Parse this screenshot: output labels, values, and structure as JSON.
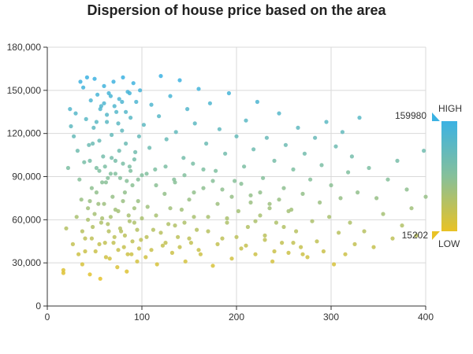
{
  "chart_data": {
    "type": "scatter",
    "title": "Dispersion of house price based on the area",
    "xlabel": "",
    "ylabel": "",
    "xlim": [
      0,
      400
    ],
    "ylim": [
      0,
      180000
    ],
    "x_ticks": [
      "0",
      "100",
      "200",
      "300",
      "400"
    ],
    "y_ticks": [
      "0",
      "30,000",
      "60,000",
      "90,000",
      "120,000",
      "150,000",
      "180,000"
    ],
    "grid": true,
    "visual_map": {
      "min": 15202,
      "max": 159980,
      "min_label": "15202",
      "max_label": "159980",
      "high_text": "HIGH",
      "low_text": "LOW",
      "color_high": "#3bb2e3",
      "color_mid": "#86c09a",
      "color_low": "#e9c225"
    },
    "series": [
      {
        "points": [
          [
            17,
            25000
          ],
          [
            17,
            23000
          ],
          [
            20,
            54000
          ],
          [
            22,
            96000
          ],
          [
            24,
            137000
          ],
          [
            25,
            125000
          ],
          [
            27,
            43000
          ],
          [
            28,
            118000
          ],
          [
            30,
            134000
          ],
          [
            31,
            62000
          ],
          [
            32,
            108000
          ],
          [
            33,
            36000
          ],
          [
            34,
            88000
          ],
          [
            35,
            156000
          ],
          [
            36,
            74000
          ],
          [
            37,
            29000
          ],
          [
            38,
            152000
          ],
          [
            39,
            100000
          ],
          [
            40,
            47000
          ],
          [
            41,
            130000
          ],
          [
            42,
            159000
          ],
          [
            43,
            68000
          ],
          [
            44,
            112000
          ],
          [
            45,
            22000
          ],
          [
            46,
            143000
          ],
          [
            47,
            82000
          ],
          [
            48,
            55000
          ],
          [
            49,
            124000
          ],
          [
            50,
            158000
          ],
          [
            51,
            38000
          ],
          [
            52,
            96000
          ],
          [
            53,
            147000
          ],
          [
            54,
            71000
          ],
          [
            55,
            115000
          ],
          [
            56,
            19000
          ],
          [
            57,
            139000
          ],
          [
            58,
            61000
          ],
          [
            59,
            104000
          ],
          [
            60,
            153000
          ],
          [
            61,
            44000
          ],
          [
            62,
            86000
          ],
          [
            63,
            128000
          ],
          [
            64,
            57000
          ],
          [
            65,
            148000
          ],
          [
            66,
            33000
          ],
          [
            67,
            92000
          ],
          [
            68,
            119000
          ],
          [
            69,
            76000
          ],
          [
            70,
            156000
          ],
          [
            71,
            48000
          ],
          [
            72,
            101000
          ],
          [
            73,
            135000
          ],
          [
            74,
            27000
          ],
          [
            75,
            66000
          ],
          [
            76,
            144000
          ],
          [
            77,
            89000
          ],
          [
            78,
            52000
          ],
          [
            79,
            122000
          ],
          [
            80,
            159000
          ],
          [
            81,
            41000
          ],
          [
            82,
            79000
          ],
          [
            83,
            113000
          ],
          [
            84,
            24000
          ],
          [
            85,
            149000
          ],
          [
            86,
            63000
          ],
          [
            87,
            97000
          ],
          [
            88,
            131000
          ],
          [
            89,
            36000
          ],
          [
            90,
            84000
          ],
          [
            91,
            155000
          ],
          [
            92,
            58000
          ],
          [
            93,
            107000
          ],
          [
            94,
            142000
          ],
          [
            95,
            31000
          ],
          [
            96,
            73000
          ],
          [
            97,
            118000
          ],
          [
            98,
            150000
          ],
          [
            99,
            46000
          ],
          [
            100,
            91000
          ],
          [
            102,
            126000
          ],
          [
            104,
            34000
          ],
          [
            106,
            69000
          ],
          [
            108,
            110000
          ],
          [
            110,
            140000
          ],
          [
            112,
            53000
          ],
          [
            114,
            95000
          ],
          [
            116,
            29000
          ],
          [
            118,
            132000
          ],
          [
            120,
            160000
          ],
          [
            122,
            42000
          ],
          [
            124,
            78000
          ],
          [
            126,
            116000
          ],
          [
            128,
            57000
          ],
          [
            130,
            146000
          ],
          [
            132,
            37000
          ],
          [
            134,
            88000
          ],
          [
            136,
            121000
          ],
          [
            138,
            48000
          ],
          [
            140,
            157000
          ],
          [
            142,
            67000
          ],
          [
            144,
            103000
          ],
          [
            146,
            31000
          ],
          [
            148,
            137000
          ],
          [
            150,
            74000
          ],
          [
            152,
            44000
          ],
          [
            154,
            99000
          ],
          [
            156,
            127000
          ],
          [
            158,
            53000
          ],
          [
            160,
            151000
          ],
          [
            162,
            36000
          ],
          [
            165,
            82000
          ],
          [
            168,
            113000
          ],
          [
            170,
            62000
          ],
          [
            172,
            141000
          ],
          [
            175,
            28000
          ],
          [
            178,
            94000
          ],
          [
            180,
            71000
          ],
          [
            182,
            123000
          ],
          [
            185,
            47000
          ],
          [
            188,
            106000
          ],
          [
            190,
            58000
          ],
          [
            192,
            148000
          ],
          [
            195,
            33000
          ],
          [
            198,
            87000
          ],
          [
            200,
            118000
          ],
          [
            202,
            66000
          ],
          [
            205,
            40000
          ],
          [
            208,
            97000
          ],
          [
            210,
            129000
          ],
          [
            212,
            55000
          ],
          [
            215,
            77000
          ],
          [
            218,
            109000
          ],
          [
            220,
            36000
          ],
          [
            222,
            142000
          ],
          [
            225,
            63000
          ],
          [
            228,
            89000
          ],
          [
            230,
            49000
          ],
          [
            232,
            117000
          ],
          [
            235,
            71000
          ],
          [
            238,
            31000
          ],
          [
            240,
            101000
          ],
          [
            242,
            58000
          ],
          [
            245,
            134000
          ],
          [
            248,
            44000
          ],
          [
            250,
            82000
          ],
          [
            252,
            112000
          ],
          [
            255,
            37000
          ],
          [
            258,
            67000
          ],
          [
            260,
            95000
          ],
          [
            263,
            52000
          ],
          [
            265,
            124000
          ],
          [
            268,
            41000
          ],
          [
            270,
            78000
          ],
          [
            272,
            106000
          ],
          [
            275,
            34000
          ],
          [
            278,
            88000
          ],
          [
            280,
            59000
          ],
          [
            283,
            117000
          ],
          [
            285,
            45000
          ],
          [
            288,
            72000
          ],
          [
            290,
            98000
          ],
          [
            292,
            38000
          ],
          [
            295,
            128000
          ],
          [
            298,
            62000
          ],
          [
            300,
            84000
          ],
          [
            303,
            29000
          ],
          [
            305,
            111000
          ],
          [
            308,
            51000
          ],
          [
            310,
            75000
          ],
          [
            312,
            121000
          ],
          [
            315,
            36000
          ],
          [
            318,
            93000
          ],
          [
            320,
            58000
          ],
          [
            322,
            104000
          ],
          [
            325,
            43000
          ],
          [
            328,
            79000
          ],
          [
            330,
            131000
          ],
          [
            335,
            52000
          ],
          [
            340,
            96000
          ],
          [
            345,
            41000
          ],
          [
            348,
            75000
          ],
          [
            355,
            64000
          ],
          [
            360,
            88000
          ],
          [
            365,
            47000
          ],
          [
            370,
            101000
          ],
          [
            375,
            56000
          ],
          [
            380,
            81000
          ],
          [
            385,
            68000
          ],
          [
            390,
            49000
          ],
          [
            398,
            108000
          ],
          [
            400,
            76000
          ],
          [
            37,
            52000
          ],
          [
            40,
            38000
          ],
          [
            43,
            60000
          ],
          [
            45,
            73000
          ],
          [
            47,
            47000
          ],
          [
            50,
            64000
          ],
          [
            52,
            79000
          ],
          [
            55,
            43000
          ],
          [
            57,
            58000
          ],
          [
            60,
            71000
          ],
          [
            62,
            34000
          ],
          [
            65,
            52000
          ],
          [
            67,
            62000
          ],
          [
            70,
            44000
          ],
          [
            72,
            67000
          ],
          [
            75,
            39000
          ],
          [
            77,
            54000
          ],
          [
            80,
            73000
          ],
          [
            82,
            49000
          ],
          [
            85,
            36000
          ],
          [
            87,
            59000
          ],
          [
            90,
            45000
          ],
          [
            92,
            68000
          ],
          [
            95,
            53000
          ],
          [
            97,
            40000
          ],
          [
            100,
            61000
          ],
          [
            105,
            48000
          ],
          [
            110,
            39000
          ],
          [
            115,
            63000
          ],
          [
            120,
            51000
          ],
          [
            125,
            44000
          ],
          [
            130,
            68000
          ],
          [
            135,
            56000
          ],
          [
            140,
            41000
          ],
          [
            145,
            58000
          ],
          [
            150,
            47000
          ],
          [
            155,
            62000
          ],
          [
            160,
            39000
          ],
          [
            170,
            52000
          ],
          [
            180,
            43000
          ],
          [
            190,
            61000
          ],
          [
            200,
            48000
          ],
          [
            210,
            42000
          ],
          [
            220,
            59000
          ],
          [
            230,
            46000
          ],
          [
            240,
            38000
          ],
          [
            250,
            55000
          ],
          [
            260,
            44000
          ],
          [
            270,
            36000
          ],
          [
            45,
            101000
          ],
          [
            48,
            113000
          ],
          [
            52,
            128000
          ],
          [
            56,
            137000
          ],
          [
            60,
            141000
          ],
          [
            63,
            133000
          ],
          [
            67,
            146000
          ],
          [
            71,
            139000
          ],
          [
            75,
            127000
          ],
          [
            79,
            142000
          ],
          [
            83,
            135000
          ],
          [
            87,
            148000
          ],
          [
            55,
            94000
          ],
          [
            58,
            86000
          ],
          [
            61,
            97000
          ],
          [
            64,
            89000
          ],
          [
            68,
            103000
          ],
          [
            72,
            92000
          ],
          [
            76,
            108000
          ],
          [
            80,
            99000
          ],
          [
            84,
            87000
          ],
          [
            88,
            94000
          ],
          [
            92,
            102000
          ],
          [
            96,
            88000
          ],
          [
            105,
            92000
          ],
          [
            115,
            84000
          ],
          [
            125,
            97000
          ],
          [
            135,
            86000
          ],
          [
            145,
            91000
          ],
          [
            155,
            79000
          ],
          [
            165,
            95000
          ],
          [
            175,
            87000
          ],
          [
            185,
            81000
          ],
          [
            195,
            76000
          ],
          [
            205,
            85000
          ],
          [
            215,
            72000
          ],
          [
            225,
            79000
          ],
          [
            235,
            68000
          ],
          [
            245,
            74000
          ],
          [
            255,
            66000
          ]
        ]
      }
    ]
  }
}
